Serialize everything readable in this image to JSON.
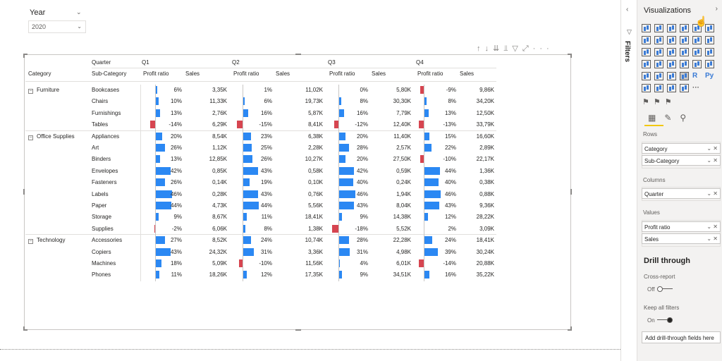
{
  "slicer": {
    "title": "Year",
    "value": "2020"
  },
  "toolbar": {
    "icons": [
      "arrow-up-icon",
      "arrow-down-icon",
      "expand-all-icon",
      "expand-icon",
      "filter-icon",
      "focus-mode-icon",
      "more-options-icon"
    ]
  },
  "matrix": {
    "col_header_quarter": "Quarter",
    "quarters": [
      "Q1",
      "Q2",
      "Q3",
      "Q4"
    ],
    "row_header_category": "Category",
    "row_header_subcategory": "Sub-Category",
    "measure_profit": "Profit ratio",
    "measure_sales": "Sales",
    "categories": [
      {
        "name": "Furniture",
        "rows": [
          {
            "sub": "Bookcases",
            "q": [
              [
                "6%",
                6,
                "3,35K"
              ],
              [
                "1%",
                1,
                "11,02K"
              ],
              [
                "0%",
                0,
                "5,80K"
              ],
              [
                "-9%",
                -9,
                "9,86K"
              ]
            ]
          },
          {
            "sub": "Chairs",
            "q": [
              [
                "10%",
                10,
                "11,33K"
              ],
              [
                "6%",
                6,
                "19,73K"
              ],
              [
                "8%",
                8,
                "30,30K"
              ],
              [
                "8%",
                8,
                "34,20K"
              ]
            ]
          },
          {
            "sub": "Furnishings",
            "q": [
              [
                "13%",
                13,
                "2,76K"
              ],
              [
                "16%",
                16,
                "5,87K"
              ],
              [
                "16%",
                16,
                "7,79K"
              ],
              [
                "13%",
                13,
                "12,50K"
              ]
            ]
          },
          {
            "sub": "Tables",
            "q": [
              [
                "-14%",
                -14,
                "6,29K"
              ],
              [
                "-15%",
                -15,
                "8,41K"
              ],
              [
                "-12%",
                -12,
                "12,40K"
              ],
              [
                "-13%",
                -13,
                "33,79K"
              ]
            ]
          }
        ]
      },
      {
        "name": "Office Supplies",
        "rows": [
          {
            "sub": "Appliances",
            "q": [
              [
                "20%",
                20,
                "8,54K"
              ],
              [
                "23%",
                23,
                "6,38K"
              ],
              [
                "20%",
                20,
                "11,40K"
              ],
              [
                "15%",
                15,
                "16,60K"
              ]
            ]
          },
          {
            "sub": "Art",
            "q": [
              [
                "26%",
                26,
                "1,12K"
              ],
              [
                "25%",
                25,
                "2,28K"
              ],
              [
                "28%",
                28,
                "2,57K"
              ],
              [
                "22%",
                22,
                "2,89K"
              ]
            ]
          },
          {
            "sub": "Binders",
            "q": [
              [
                "13%",
                13,
                "12,85K"
              ],
              [
                "26%",
                26,
                "10,27K"
              ],
              [
                "20%",
                20,
                "27,50K"
              ],
              [
                "-10%",
                -10,
                "22,17K"
              ]
            ]
          },
          {
            "sub": "Envelopes",
            "q": [
              [
                "42%",
                42,
                "0,85K"
              ],
              [
                "43%",
                43,
                "0,58K"
              ],
              [
                "42%",
                42,
                "0,59K"
              ],
              [
                "44%",
                44,
                "1,36K"
              ]
            ]
          },
          {
            "sub": "Fasteners",
            "q": [
              [
                "26%",
                26,
                "0,14K"
              ],
              [
                "19%",
                19,
                "0,10K"
              ],
              [
                "40%",
                40,
                "0,24K"
              ],
              [
                "40%",
                40,
                "0,38K"
              ]
            ]
          },
          {
            "sub": "Labels",
            "q": [
              [
                "46%",
                46,
                "0,28K"
              ],
              [
                "43%",
                43,
                "0,76K"
              ],
              [
                "46%",
                46,
                "1,94K"
              ],
              [
                "46%",
                46,
                "0,88K"
              ]
            ]
          },
          {
            "sub": "Paper",
            "q": [
              [
                "44%",
                44,
                "4,73K"
              ],
              [
                "44%",
                44,
                "5,56K"
              ],
              [
                "43%",
                43,
                "8,04K"
              ],
              [
                "43%",
                43,
                "9,36K"
              ]
            ]
          },
          {
            "sub": "Storage",
            "q": [
              [
                "9%",
                9,
                "8,67K"
              ],
              [
                "11%",
                11,
                "18,41K"
              ],
              [
                "9%",
                9,
                "14,38K"
              ],
              [
                "12%",
                12,
                "28,22K"
              ]
            ]
          },
          {
            "sub": "Supplies",
            "q": [
              [
                "-2%",
                -2,
                "6,06K"
              ],
              [
                "8%",
                8,
                "1,38K"
              ],
              [
                "-18%",
                -18,
                "5,52K"
              ],
              [
                "2%",
                2,
                "3,09K"
              ]
            ]
          }
        ]
      },
      {
        "name": "Technology",
        "rows": [
          {
            "sub": "Accessories",
            "q": [
              [
                "27%",
                27,
                "8,52K"
              ],
              [
                "24%",
                24,
                "10,74K"
              ],
              [
                "28%",
                28,
                "22,28K"
              ],
              [
                "24%",
                24,
                "18,41K"
              ]
            ]
          },
          {
            "sub": "Copiers",
            "q": [
              [
                "43%",
                43,
                "24,32K"
              ],
              [
                "31%",
                31,
                "3,36K"
              ],
              [
                "31%",
                31,
                "4,98K"
              ],
              [
                "39%",
                39,
                "30,24K"
              ]
            ]
          },
          {
            "sub": "Machines",
            "q": [
              [
                "18%",
                18,
                "5,09K"
              ],
              [
                "-10%",
                -10,
                "11,56K"
              ],
              [
                "4%",
                4,
                "6,01K"
              ],
              [
                "-14%",
                -14,
                "20,88K"
              ]
            ]
          },
          {
            "sub": "Phones",
            "q": [
              [
                "11%",
                11,
                "18,26K"
              ],
              [
                "12%",
                12,
                "17,35K"
              ],
              [
                "9%",
                9,
                "34,51K"
              ],
              [
                "16%",
                16,
                "35,22K"
              ]
            ]
          }
        ]
      }
    ],
    "colors": {
      "positive": "#2b88f3",
      "negative": "#d64550"
    }
  },
  "filters_pane": {
    "label": "Filters"
  },
  "viz_pane": {
    "title": "Visualizations",
    "fields_label": "Rows",
    "rows": [
      "Category",
      "Sub-Category"
    ],
    "columns_label": "Columns",
    "columns": [
      "Quarter"
    ],
    "values_label": "Values",
    "values": [
      "Profit ratio",
      "Sales"
    ],
    "drill_title": "Drill through",
    "cross_report_label": "Cross-report",
    "cross_report_state": "Off",
    "keep_filters_label": "Keep all filters",
    "keep_filters_state": "On",
    "drill_placeholder": "Add drill-through fields here",
    "r_visual": "R",
    "py_visual": "Py",
    "accent": "#f2c811"
  }
}
